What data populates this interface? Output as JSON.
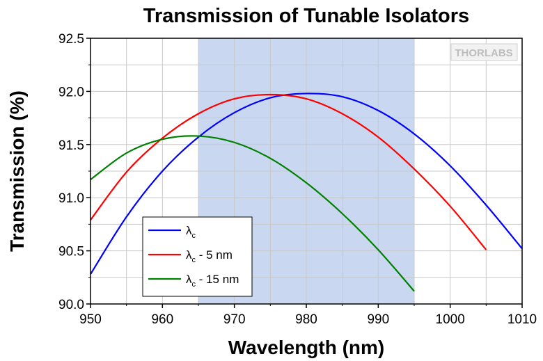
{
  "chart_data": {
    "type": "line",
    "title": "Transmission of Tunable Isolators",
    "xlabel": "Wavelength (nm)",
    "ylabel": "Transmission (%)",
    "xlim": [
      950,
      1010
    ],
    "ylim": [
      90.0,
      92.5
    ],
    "xticks": [
      950,
      960,
      970,
      980,
      990,
      1000,
      1010
    ],
    "yticks": [
      "90.0",
      "90.5",
      "91.0",
      "91.5",
      "92.0",
      "92.5"
    ],
    "grid": true,
    "highlight_band": {
      "x_range": [
        965,
        995
      ],
      "color": "#c9d7f0"
    },
    "series": [
      {
        "name": "λc",
        "color": "#0000ff",
        "x": [
          950,
          955,
          960,
          965,
          970,
          975,
          980,
          985,
          990,
          995,
          1000,
          1005,
          1010
        ],
        "y": [
          90.28,
          90.82,
          91.25,
          91.57,
          91.8,
          91.94,
          91.98,
          91.95,
          91.82,
          91.6,
          91.3,
          90.93,
          90.52
        ]
      },
      {
        "name": "λc - 5 nm",
        "color": "#ff0000",
        "x": [
          950,
          955,
          960,
          965,
          970,
          975,
          980,
          985,
          990,
          995,
          1000,
          1005
        ],
        "y": [
          90.79,
          91.24,
          91.56,
          91.79,
          91.93,
          91.97,
          91.93,
          91.79,
          91.57,
          91.27,
          90.92,
          90.51
        ]
      },
      {
        "name": "λc - 15 nm",
        "color": "#008000",
        "x": [
          950,
          955,
          960,
          965,
          970,
          975,
          980,
          985,
          990,
          995
        ],
        "y": [
          91.17,
          91.42,
          91.55,
          91.58,
          91.52,
          91.37,
          91.14,
          90.85,
          90.51,
          90.12
        ]
      }
    ],
    "legend": {
      "placement": "bottom-left",
      "entries": [
        {
          "symbol": "λ",
          "subscript": "c",
          "suffix": ""
        },
        {
          "symbol": "λ",
          "subscript": "c",
          "suffix": " - 5 nm"
        },
        {
          "symbol": "λ",
          "subscript": "c",
          "suffix": " - 15 nm"
        }
      ]
    }
  },
  "watermark": "THORLABS"
}
